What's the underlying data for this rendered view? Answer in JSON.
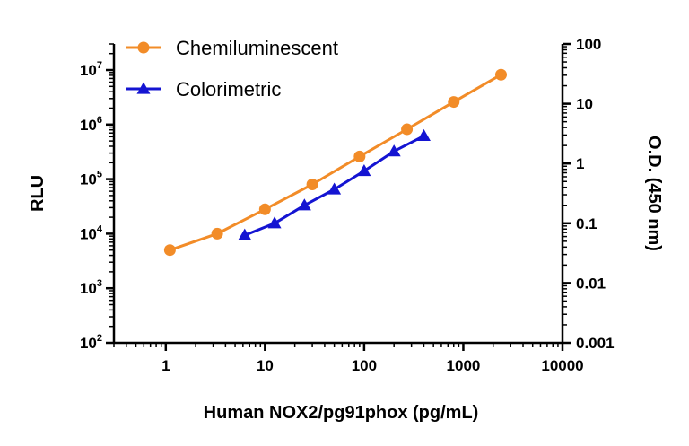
{
  "chart_data": {
    "type": "line",
    "xlabel": "Human NOX2/pg91phox (pg/mL)",
    "ylabel": "RLU",
    "y2label": "O.D. (450 nm)",
    "x_scale": "log",
    "y_scale": "log",
    "y2_scale": "log",
    "xlim": [
      0.3,
      10000
    ],
    "ylim": [
      100,
      30000000
    ],
    "y2lim": [
      0.001,
      100
    ],
    "x_ticks": [
      {
        "value": 1,
        "label": "1"
      },
      {
        "value": 10,
        "label": "10"
      },
      {
        "value": 100,
        "label": "100"
      },
      {
        "value": 1000,
        "label": "1000"
      },
      {
        "value": 10000,
        "label": "10000"
      }
    ],
    "y_ticks": [
      {
        "value": 100,
        "base": "10",
        "exp": "2"
      },
      {
        "value": 1000,
        "base": "10",
        "exp": "3"
      },
      {
        "value": 10000,
        "base": "10",
        "exp": "4"
      },
      {
        "value": 100000,
        "base": "10",
        "exp": "5"
      },
      {
        "value": 1000000,
        "base": "10",
        "exp": "6"
      },
      {
        "value": 10000000,
        "base": "10",
        "exp": "7"
      }
    ],
    "y2_ticks": [
      {
        "value": 0.001,
        "label": "0.001"
      },
      {
        "value": 0.01,
        "label": "0.01"
      },
      {
        "value": 0.1,
        "label": "0.1"
      },
      {
        "value": 1,
        "label": "1"
      },
      {
        "value": 10,
        "label": "10"
      },
      {
        "value": 100,
        "label": "100"
      }
    ],
    "legend_position": "top-left",
    "series": [
      {
        "name": "Chemiluminescent",
        "axis": "left",
        "color": "#F28C28",
        "marker": "circle",
        "x": [
          1.1,
          3.3,
          10,
          30,
          90,
          270,
          800,
          2400
        ],
        "y": [
          5000,
          10000,
          28000,
          80000,
          260000,
          820000,
          2600000,
          8200000
        ]
      },
      {
        "name": "Colorimetric",
        "axis": "right",
        "color": "#1414D2",
        "marker": "triangle",
        "x": [
          6.25,
          12.5,
          25,
          50,
          100,
          200,
          400
        ],
        "y": [
          0.063,
          0.1,
          0.2,
          0.37,
          0.75,
          1.6,
          2.9
        ]
      }
    ]
  }
}
